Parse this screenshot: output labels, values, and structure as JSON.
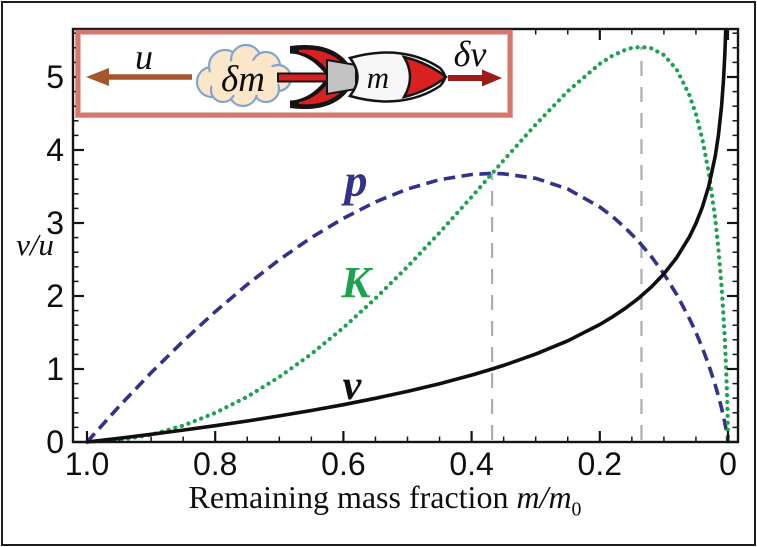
{
  "figure": {
    "background": "#ffffff",
    "border_color": "#1e1e1e",
    "frame_color": "#141414"
  },
  "chart_data": {
    "type": "line",
    "xlabel_text": "Remaining mass fraction ",
    "xlabel_math": "m/m",
    "xlabel_sub": "0",
    "ylabel": "v/u",
    "x_axis_reversed": true,
    "xlim": [
      1.02,
      -0.016
    ],
    "ylim": [
      0,
      5.66
    ],
    "grid": false,
    "legend": "inline curve labels",
    "x_major_ticks": {
      "labels": [
        "1.0",
        "0.8",
        "0.6",
        "0.4",
        "0.2",
        "0"
      ],
      "values": [
        1.0,
        0.8,
        0.6,
        0.4,
        0.2,
        0
      ]
    },
    "x_minor_step": 0.05,
    "y_major_ticks": {
      "labels": [
        "0",
        "1",
        "2",
        "3",
        "4",
        "5"
      ],
      "values": [
        0,
        1,
        2,
        3,
        4,
        5
      ]
    },
    "y_minor_step": 0.2,
    "series": [
      {
        "name": "v",
        "label": "v",
        "color": "#0f0f0f",
        "line_style": "solid",
        "points": [
          [
            1.0,
            0
          ],
          [
            0.95,
            0.051
          ],
          [
            0.9,
            0.105
          ],
          [
            0.85,
            0.163
          ],
          [
            0.8,
            0.223
          ],
          [
            0.75,
            0.288
          ],
          [
            0.7,
            0.357
          ],
          [
            0.65,
            0.431
          ],
          [
            0.6,
            0.511
          ],
          [
            0.55,
            0.598
          ],
          [
            0.5,
            0.693
          ],
          [
            0.45,
            0.799
          ],
          [
            0.4,
            0.916
          ],
          [
            0.368,
            1.0
          ],
          [
            0.35,
            1.05
          ],
          [
            0.3,
            1.204
          ],
          [
            0.25,
            1.386
          ],
          [
            0.2,
            1.609
          ],
          [
            0.18,
            1.715
          ],
          [
            0.16,
            1.833
          ],
          [
            0.14,
            1.966
          ],
          [
            0.12,
            2.12
          ],
          [
            0.1,
            2.303
          ],
          [
            0.08,
            2.526
          ],
          [
            0.06,
            2.813
          ],
          [
            0.05,
            2.996
          ],
          [
            0.04,
            3.219
          ],
          [
            0.03,
            3.507
          ],
          [
            0.02,
            3.912
          ],
          [
            0.015,
            4.2
          ],
          [
            0.01,
            4.605
          ],
          [
            0.007,
            4.962
          ],
          [
            0.005,
            5.298
          ],
          [
            0.004,
            5.521
          ],
          [
            0.0035,
            5.655
          ]
        ]
      },
      {
        "name": "p",
        "label": "p",
        "color": "#32318c",
        "line_style": "dashed",
        "points": [
          [
            1.0,
            0
          ],
          [
            0.95,
            0.487
          ],
          [
            0.9,
            0.949
          ],
          [
            0.85,
            1.381
          ],
          [
            0.8,
            1.785
          ],
          [
            0.75,
            2.158
          ],
          [
            0.7,
            2.497
          ],
          [
            0.65,
            2.8
          ],
          [
            0.6,
            3.065
          ],
          [
            0.55,
            3.288
          ],
          [
            0.5,
            3.466
          ],
          [
            0.45,
            3.593
          ],
          [
            0.4,
            3.665
          ],
          [
            0.368,
            3.679
          ],
          [
            0.35,
            3.674
          ],
          [
            0.3,
            3.612
          ],
          [
            0.25,
            3.466
          ],
          [
            0.2,
            3.219
          ],
          [
            0.18,
            3.087
          ],
          [
            0.16,
            2.932
          ],
          [
            0.14,
            2.752
          ],
          [
            0.12,
            2.544
          ],
          [
            0.1,
            2.303
          ],
          [
            0.08,
            2.021
          ],
          [
            0.06,
            1.688
          ],
          [
            0.05,
            1.498
          ],
          [
            0.04,
            1.288
          ],
          [
            0.03,
            1.052
          ],
          [
            0.02,
            0.782
          ],
          [
            0.015,
            0.63
          ],
          [
            0.01,
            0.461
          ],
          [
            0.007,
            0.347
          ],
          [
            0.005,
            0.265
          ],
          [
            0.003,
            0.174
          ],
          [
            0.001,
            0.069
          ],
          [
            0.0,
            0.0
          ]
        ]
      },
      {
        "name": "K",
        "label": "K",
        "color": "#1ba24e",
        "line_style": "dotted",
        "points": [
          [
            1.0,
            0
          ],
          [
            0.95,
            0.025
          ],
          [
            0.9,
            0.1
          ],
          [
            0.85,
            0.224
          ],
          [
            0.8,
            0.398
          ],
          [
            0.75,
            0.621
          ],
          [
            0.7,
            0.891
          ],
          [
            0.65,
            1.206
          ],
          [
            0.6,
            1.566
          ],
          [
            0.55,
            1.966
          ],
          [
            0.5,
            2.402
          ],
          [
            0.45,
            2.869
          ],
          [
            0.4,
            3.358
          ],
          [
            0.368,
            3.678
          ],
          [
            0.35,
            3.857
          ],
          [
            0.3,
            4.349
          ],
          [
            0.25,
            4.805
          ],
          [
            0.2,
            5.181
          ],
          [
            0.18,
            5.293
          ],
          [
            0.16,
            5.373
          ],
          [
            0.15,
            5.399
          ],
          [
            0.135,
            5.413
          ],
          [
            0.12,
            5.394
          ],
          [
            0.1,
            5.302
          ],
          [
            0.08,
            5.103
          ],
          [
            0.06,
            4.749
          ],
          [
            0.05,
            4.487
          ],
          [
            0.04,
            4.145
          ],
          [
            0.03,
            3.689
          ],
          [
            0.02,
            3.061
          ],
          [
            0.015,
            2.646
          ],
          [
            0.01,
            2.121
          ],
          [
            0.007,
            1.723
          ],
          [
            0.005,
            1.404
          ],
          [
            0.003,
            1.012
          ],
          [
            0.002,
            0.772
          ],
          [
            0.001,
            0.477
          ],
          [
            0.0005,
            0.289
          ],
          [
            0.0,
            0.0
          ]
        ]
      }
    ],
    "guide_lines": [
      {
        "x": 0.368,
        "y_top": 3.679,
        "color": "#adadad",
        "style": "dashed"
      },
      {
        "x": 0.135,
        "y_top": 5.413,
        "color": "#adadad",
        "style": "dashed"
      }
    ]
  },
  "inset": {
    "border_color": "#d9756a",
    "background": "#ffffff",
    "exhaust_label": "u",
    "ejected_mass_label": "δm",
    "rocket_mass_label": "m",
    "delta_v_label": "δv",
    "u_arrow_color": "#a5562d",
    "dv_arrow_color": "#9c1d18",
    "cloud_fill": "#fbe6ca",
    "cloud_stroke": "#7fa6cd",
    "rocket_red": "#d92121",
    "rocket_gray": "#c2c2c2",
    "rocket_body": "#f7f7f7",
    "rocket_outline": "#141414"
  }
}
